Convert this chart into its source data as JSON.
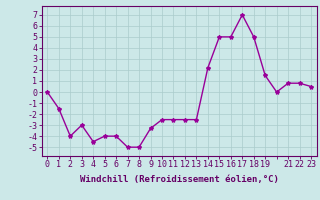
{
  "x": [
    0,
    1,
    2,
    3,
    4,
    5,
    6,
    7,
    8,
    9,
    10,
    11,
    12,
    13,
    14,
    15,
    16,
    17,
    18,
    19,
    20,
    21,
    22,
    23
  ],
  "y": [
    0,
    -1.5,
    -4,
    -3,
    -4.5,
    -4,
    -4,
    -5,
    -5,
    -3.3,
    -2.5,
    -2.5,
    -2.5,
    -2.5,
    2.2,
    5,
    5,
    7,
    5,
    1.5,
    0,
    0.8,
    0.8,
    0.5
  ],
  "line_color": "#990099",
  "marker": "*",
  "marker_size": 3,
  "bg_color": "#cce8e8",
  "grid_color": "#aacccc",
  "xlabel": "Windchill (Refroidissement éolien,°C)",
  "xlabel_fontsize": 6.5,
  "xticks": [
    0,
    1,
    2,
    3,
    4,
    5,
    6,
    7,
    8,
    9,
    10,
    11,
    12,
    13,
    14,
    15,
    16,
    17,
    18,
    19,
    20,
    21,
    22,
    23
  ],
  "xtick_labels": [
    "0",
    "1",
    "2",
    "3",
    "4",
    "5",
    "6",
    "7",
    "8",
    "9",
    "10",
    "11",
    "12",
    "13",
    "14",
    "15",
    "16",
    "17",
    "18",
    "19",
    "",
    "21",
    "22",
    "23"
  ],
  "yticks": [
    -5,
    -4,
    -3,
    -2,
    -1,
    0,
    1,
    2,
    3,
    4,
    5,
    6,
    7
  ],
  "ylim": [
    -5.8,
    7.8
  ],
  "xlim": [
    -0.5,
    23.5
  ],
  "tick_fontsize": 6,
  "tick_color": "#660066",
  "axis_color": "#660066",
  "linewidth": 1.0
}
